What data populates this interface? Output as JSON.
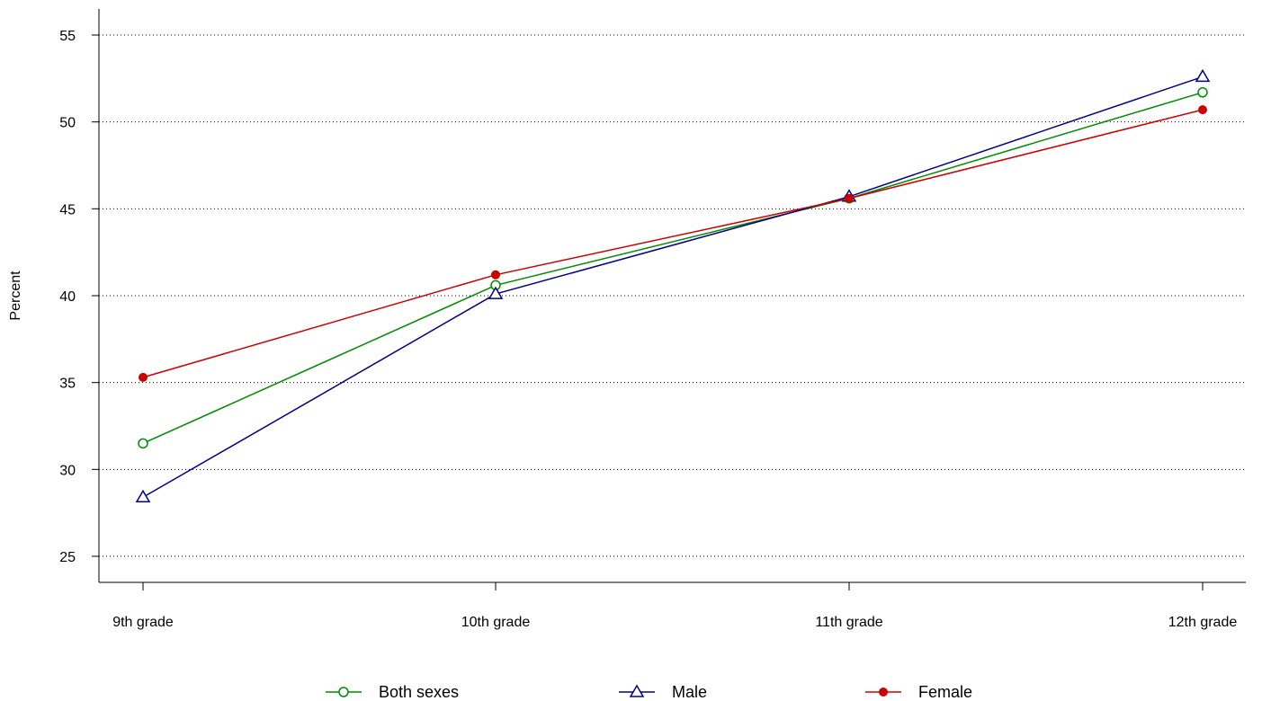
{
  "chart_data": {
    "type": "line",
    "title": "",
    "xlabel": "",
    "ylabel": "Percent",
    "categories": [
      "9th grade",
      "10th grade",
      "11th grade",
      "12th grade"
    ],
    "ylim": [
      23.5,
      56.5
    ],
    "yticks": [
      25,
      30,
      35,
      40,
      45,
      50,
      55
    ],
    "grid": "horizontal-dotted",
    "legend_position": "bottom",
    "series": [
      {
        "name": "Both sexes",
        "values": [
          31.5,
          40.6,
          45.6,
          51.7
        ],
        "color": "#008B00",
        "marker": "open-circle"
      },
      {
        "name": "Male",
        "values": [
          28.4,
          40.1,
          45.7,
          52.6
        ],
        "color": "#00008B",
        "marker": "open-triangle"
      },
      {
        "name": "Female",
        "values": [
          35.3,
          41.2,
          45.6,
          50.7
        ],
        "color": "#CD0000",
        "marker": "filled-circle"
      }
    ]
  }
}
